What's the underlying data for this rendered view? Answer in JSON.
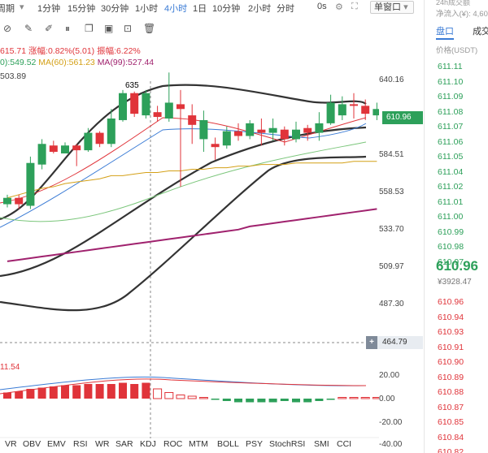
{
  "toolbar": {
    "period_label": "周期",
    "periods": [
      "1分钟",
      "15分钟",
      "30分钟",
      "1小时",
      "4小时",
      "1日",
      "10分钟",
      "2小时",
      "分时"
    ],
    "active_period": "4小时",
    "zero_s": "0s",
    "window_mode": "单窗口"
  },
  "legend": {
    "price_line": "615.71 涨幅:0.82%(5.01) 振幅:6.22%",
    "ma_prefix": "0):549.52",
    "ma60": "MA(60):561.23",
    "ma99": "MA(99):527.44",
    "third": "503.89"
  },
  "chart_labels": {
    "high_marker": "635",
    "macd_value": "11.54",
    "current_price": "610.96",
    "hover_price": "464.79"
  },
  "y_axis": {
    "price_ticks": [
      "640.16",
      "610.96",
      "584.51",
      "558.53",
      "533.70",
      "509.97",
      "487.30"
    ],
    "macd_ticks": [
      "20.00",
      "0.00",
      "-20.00",
      "-40.00"
    ]
  },
  "indicator_tabs": [
    "VR",
    "OBV",
    "EMV",
    "RSI",
    "WR",
    "SAR",
    "KDJ",
    "ROC",
    "MTM",
    "BOLL",
    "PSY",
    "StochRSI",
    "SMI",
    "CCI"
  ],
  "colors": {
    "up": "#2da05a",
    "down": "#e0343a",
    "accent": "#3a7bd5"
  },
  "chart_data": {
    "type": "candlestick",
    "ylim": [
      464.79,
      650
    ],
    "candles": [
      {
        "o": 552,
        "c": 556,
        "h": 558,
        "l": 550
      },
      {
        "o": 556,
        "c": 552,
        "h": 558,
        "l": 549
      },
      {
        "o": 551,
        "c": 578,
        "h": 582,
        "l": 549
      },
      {
        "o": 577,
        "c": 590,
        "h": 593,
        "l": 574
      },
      {
        "o": 589,
        "c": 585,
        "h": 592,
        "l": 584
      },
      {
        "o": 584,
        "c": 589,
        "h": 591,
        "l": 584
      },
      {
        "o": 589,
        "c": 586,
        "h": 590,
        "l": 576
      },
      {
        "o": 586,
        "c": 597,
        "h": 600,
        "l": 585
      },
      {
        "o": 597,
        "c": 590,
        "h": 598,
        "l": 588
      },
      {
        "o": 590,
        "c": 606,
        "h": 612,
        "l": 588
      },
      {
        "o": 605,
        "c": 622,
        "h": 624,
        "l": 604
      },
      {
        "o": 622,
        "c": 609,
        "h": 623,
        "l": 607
      },
      {
        "o": 608,
        "c": 622,
        "h": 624,
        "l": 606
      },
      {
        "o": 610,
        "c": 607,
        "h": 614,
        "l": 604
      },
      {
        "o": 606,
        "c": 616,
        "h": 635,
        "l": 604
      },
      {
        "o": 615,
        "c": 612,
        "h": 624,
        "l": 563
      },
      {
        "o": 608,
        "c": 602,
        "h": 615,
        "l": 590
      },
      {
        "o": 593,
        "c": 605,
        "h": 611,
        "l": 585
      },
      {
        "o": 590,
        "c": 588,
        "h": 594,
        "l": 580
      },
      {
        "o": 589,
        "c": 598,
        "h": 601,
        "l": 587
      },
      {
        "o": 598,
        "c": 595,
        "h": 603,
        "l": 592
      },
      {
        "o": 595,
        "c": 603,
        "h": 605,
        "l": 593
      },
      {
        "o": 599,
        "c": 597,
        "h": 606,
        "l": 589
      },
      {
        "o": 597,
        "c": 600,
        "h": 606,
        "l": 592
      },
      {
        "o": 599,
        "c": 593,
        "h": 601,
        "l": 589
      },
      {
        "o": 593,
        "c": 599,
        "h": 604,
        "l": 591
      },
      {
        "o": 600,
        "c": 597,
        "h": 602,
        "l": 592
      },
      {
        "o": 597,
        "c": 603,
        "h": 610,
        "l": 592
      },
      {
        "o": 603,
        "c": 616,
        "h": 621,
        "l": 602
      },
      {
        "o": 608,
        "c": 615,
        "h": 620,
        "l": 605
      },
      {
        "o": 615,
        "c": 614,
        "h": 622,
        "l": 606
      },
      {
        "o": 614,
        "c": 609,
        "h": 618,
        "l": 605
      },
      {
        "o": 608,
        "c": 612,
        "h": 616,
        "l": 605
      }
    ],
    "lines": [
      {
        "name": "MA(60)",
        "color": "#d4a017",
        "values": [
          556,
          558,
          560,
          562,
          563,
          565,
          566,
          567,
          568,
          570,
          570,
          571,
          572,
          572,
          573,
          573,
          574,
          574,
          575,
          575,
          576,
          576,
          577,
          577,
          577,
          578,
          578,
          578,
          578,
          578,
          579,
          579,
          579
        ]
      },
      {
        "name": "MA(99)",
        "color": "#a0226e",
        "values": [
          516,
          517,
          518,
          519,
          520,
          521,
          522,
          523,
          524,
          525,
          526,
          527,
          528,
          529,
          530,
          531,
          532,
          533,
          534,
          535,
          536,
          538,
          539,
          540,
          541,
          542,
          543,
          544,
          545,
          546,
          547,
          548,
          549
        ]
      }
    ],
    "macd_hist": [
      5,
      6,
      8,
      9,
      10,
      11,
      11,
      12,
      12,
      12,
      13,
      12,
      13,
      8,
      5,
      3,
      2,
      1,
      -1,
      -2,
      -3,
      -3,
      -3,
      -3,
      -2,
      -3,
      -3,
      -2,
      -1,
      1,
      1,
      1,
      0
    ]
  },
  "right_panel": {
    "header_small": "24h成交额",
    "net_inflow": "净流入(¥): 4,60",
    "tab_active": "盘口",
    "tab_other": "成交",
    "sub_header": "价格(USDT)",
    "asks": [
      "611.11",
      "611.10",
      "611.09",
      "611.08",
      "611.07",
      "611.06",
      "611.05",
      "611.04",
      "611.02",
      "611.01",
      "611.00",
      "610.99",
      "610.98",
      "610.97"
    ],
    "last_price": "610.96",
    "last_cny": "¥3928.47",
    "bids": [
      "610.96",
      "610.94",
      "610.93",
      "610.91",
      "610.90",
      "610.89",
      "610.88",
      "610.87",
      "610.85",
      "610.84",
      "610.82"
    ]
  }
}
